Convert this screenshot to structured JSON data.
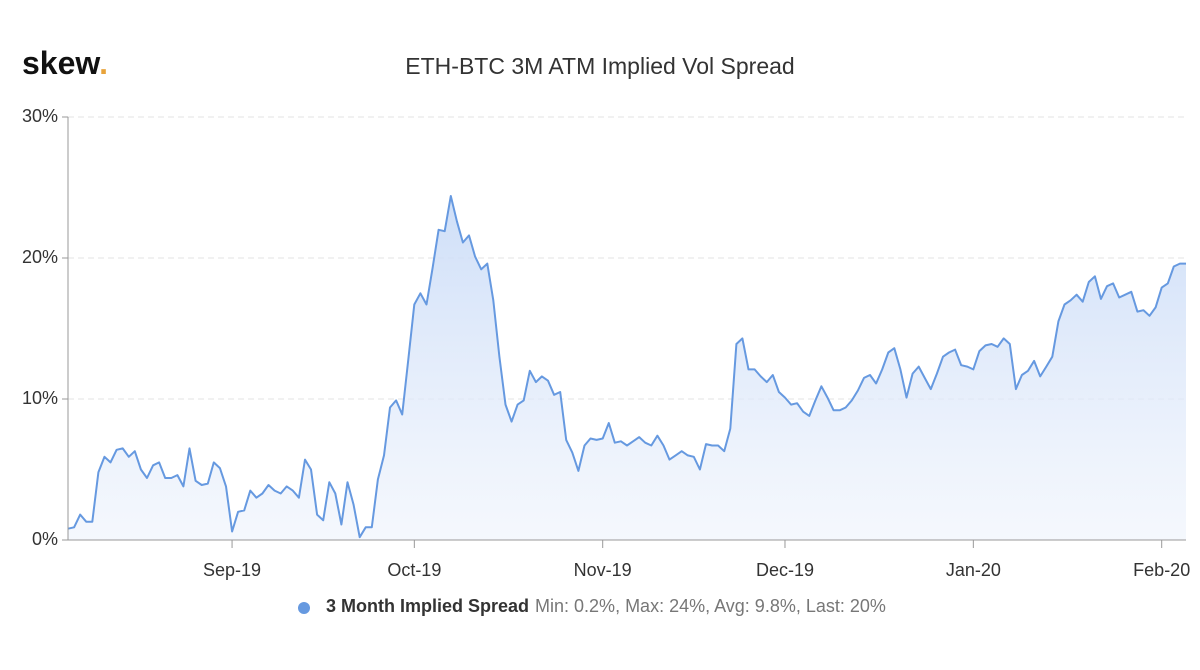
{
  "brand": "skew",
  "brand_mark": ".",
  "chart_data": {
    "type": "area",
    "title": "ETH-BTC 3M ATM Implied Vol Spread",
    "categories": [
      null,
      null,
      null,
      null,
      null,
      null,
      null,
      null,
      null,
      null,
      null,
      null,
      null,
      null,
      null,
      null,
      null,
      null,
      null,
      null,
      null,
      null,
      null,
      null,
      null,
      null,
      null,
      "Sep-19",
      null,
      null,
      null,
      null,
      null,
      null,
      null,
      null,
      null,
      null,
      null,
      null,
      null,
      null,
      null,
      null,
      null,
      null,
      null,
      null,
      null,
      null,
      null,
      null,
      null,
      null,
      null,
      null,
      null,
      "Oct-19",
      null,
      null,
      null,
      null,
      null,
      null,
      null,
      null,
      null,
      null,
      null,
      null,
      null,
      null,
      null,
      null,
      null,
      null,
      null,
      null,
      null,
      null,
      null,
      null,
      null,
      null,
      null,
      null,
      null,
      null,
      "Nov-19",
      null,
      null,
      null,
      null,
      null,
      null,
      null,
      null,
      null,
      null,
      null,
      null,
      null,
      null,
      null,
      null,
      null,
      null,
      null,
      null,
      null,
      null,
      null,
      null,
      null,
      null,
      null,
      null,
      null,
      "Dec-19",
      null,
      null,
      null,
      null,
      null,
      null,
      null,
      null,
      null,
      null,
      null,
      null,
      null,
      null,
      null,
      null,
      null,
      null,
      null,
      null,
      null,
      null,
      null,
      null,
      null,
      null,
      null,
      null,
      null,
      null,
      "Jan-20",
      null,
      null,
      null,
      null,
      null,
      null,
      null,
      null,
      null,
      null,
      null,
      null,
      null,
      null,
      null,
      null,
      null,
      null,
      null,
      null,
      null,
      null,
      null,
      null,
      null,
      null,
      null,
      null,
      null,
      null,
      "Feb-20",
      null,
      null,
      null,
      null
    ],
    "series": [
      {
        "name": "3 Month Implied Spread",
        "color": "#6699e0",
        "values": [
          0.8,
          0.9,
          1.8,
          1.3,
          1.3,
          4.8,
          5.9,
          5.5,
          6.4,
          6.5,
          5.9,
          6.3,
          5.0,
          4.4,
          5.3,
          5.5,
          4.4,
          4.4,
          4.6,
          3.8,
          6.5,
          4.2,
          3.9,
          4.0,
          5.5,
          5.1,
          3.8,
          0.6,
          2.0,
          2.1,
          3.5,
          3.0,
          3.3,
          3.9,
          3.5,
          3.3,
          3.8,
          3.5,
          3.0,
          5.7,
          5.0,
          1.8,
          1.4,
          4.1,
          3.3,
          1.1,
          4.1,
          2.5,
          0.2,
          0.9,
          0.9,
          4.3,
          6.0,
          9.4,
          9.9,
          8.9,
          12.8,
          16.7,
          17.5,
          16.7,
          19.3,
          22.0,
          21.9,
          24.4,
          22.6,
          21.1,
          21.6,
          20.1,
          19.2,
          19.6,
          17.0,
          13.0,
          9.6,
          8.4,
          9.6,
          9.9,
          12.0,
          11.2,
          11.6,
          11.3,
          10.3,
          10.5,
          7.1,
          6.2,
          4.9,
          6.7,
          7.2,
          7.1,
          7.2,
          8.3,
          6.9,
          7.0,
          6.7,
          7.0,
          7.3,
          6.9,
          6.7,
          7.4,
          6.7,
          5.7,
          6.0,
          6.3,
          6.0,
          5.9,
          5.0,
          6.8,
          6.7,
          6.7,
          6.3,
          7.9,
          13.9,
          14.3,
          12.1,
          12.1,
          11.6,
          11.2,
          11.7,
          10.5,
          10.1,
          9.6,
          9.7,
          9.1,
          8.8,
          9.9,
          10.9,
          10.1,
          9.2,
          9.2,
          9.4,
          9.9,
          10.6,
          11.5,
          11.7,
          11.1,
          12.1,
          13.3,
          13.6,
          12.1,
          10.1,
          11.8,
          12.3,
          11.5,
          10.7,
          11.8,
          13.0,
          13.3,
          13.5,
          12.4,
          12.3,
          12.1,
          13.4,
          13.8,
          13.9,
          13.7,
          14.3,
          13.9,
          10.7,
          11.7,
          12.0,
          12.7,
          11.6,
          12.3,
          13.0,
          15.5,
          16.7,
          17.0,
          17.4,
          16.9,
          18.3,
          18.7,
          17.1,
          18.0,
          18.2,
          17.2,
          17.4,
          17.6,
          16.2,
          16.3,
          15.9,
          16.5,
          17.9,
          18.2,
          19.4,
          19.6,
          19.6
        ]
      }
    ],
    "legend_stats": "Min: 0.2%, Max: 24%, Avg: 9.8%, Last: 20%",
    "ylim": [
      0,
      30
    ],
    "yticks": [
      {
        "value": 0,
        "label": "0%"
      },
      {
        "value": 10,
        "label": "10%"
      },
      {
        "value": 20,
        "label": "20%"
      },
      {
        "value": 30,
        "label": "30%"
      }
    ],
    "grid": true
  }
}
